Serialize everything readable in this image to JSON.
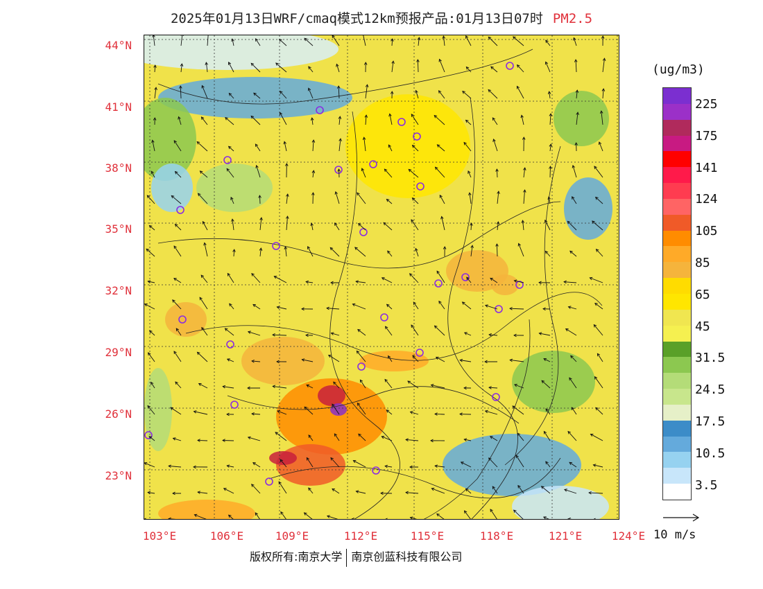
{
  "title": {
    "main": "2025年01月13日WRF/cmaq模式12km预报产品:01月13日07时",
    "pollutant": "PM2.5",
    "pollutant_color": "#e0303a"
  },
  "axes": {
    "latitude_labels": [
      "44°N",
      "41°N",
      "38°N",
      "35°N",
      "32°N",
      "29°N",
      "26°N",
      "23°N"
    ],
    "longitude_labels": [
      "103°E",
      "106°E",
      "109°E",
      "112°E",
      "115°E",
      "118°E",
      "121°E",
      "124°E"
    ]
  },
  "legend": {
    "unit": "(ug/m3)",
    "colors": [
      "#7b2fd0",
      "#9b30c8",
      "#b02a5c",
      "#c81a82",
      "#ff0000",
      "#ff1a4a",
      "#ff3c50",
      "#ff6464",
      "#f05a28",
      "#ff8c00",
      "#ffaa28",
      "#f5b43c",
      "#ffdc00",
      "#ffe600",
      "#f0e650",
      "#f5f050",
      "#5aa028",
      "#8cc850",
      "#b4dc78",
      "#c8e68c",
      "#e6f0c8",
      "#3c8cc8",
      "#64aadc",
      "#96d2f0",
      "#c8e6fa",
      "#ffffff"
    ],
    "ticks": [
      "225",
      "175",
      "141",
      "124",
      "105",
      "85",
      "65",
      "45",
      "31.5",
      "24.5",
      "17.5",
      "10.5",
      "3.5"
    ]
  },
  "wind_reference": {
    "label": "10 m/s"
  },
  "copyright": {
    "left": "版权所有:南京大学",
    "right": "南京创蓝科技有限公司"
  }
}
